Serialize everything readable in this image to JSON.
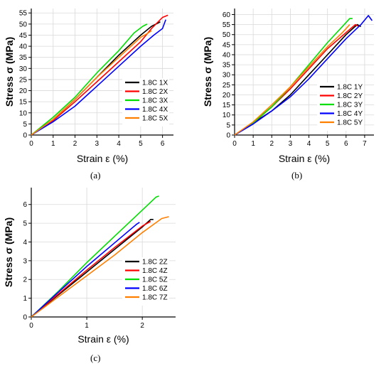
{
  "captions": [
    "(a)",
    "(b)",
    "(c)"
  ],
  "chart_data": [
    {
      "type": "line",
      "panel": "a",
      "xlabel": "Strain ε (%)",
      "ylabel": "Stress σ (MPa)",
      "xlim": [
        0,
        6.5
      ],
      "ylim": [
        0,
        57
      ],
      "xticks": [
        0,
        1,
        2,
        3,
        4,
        5,
        6
      ],
      "yticks": [
        0,
        5,
        10,
        15,
        20,
        25,
        30,
        35,
        40,
        45,
        50,
        55
      ],
      "grid": true,
      "legend_position": "center-right",
      "series": [
        {
          "name": "1.8C 1X",
          "color": "#000000",
          "x": [
            0,
            1,
            2,
            3,
            4,
            5,
            5.5,
            5.8,
            5.9
          ],
          "y": [
            0,
            7,
            16,
            26,
            36,
            45,
            49,
            50.5,
            51
          ]
        },
        {
          "name": "1.8C 2X",
          "color": "#ff0000",
          "x": [
            0,
            1,
            2,
            3,
            4,
            5,
            5.5,
            6.0,
            6.25
          ],
          "y": [
            0,
            6.5,
            15,
            24,
            33,
            42,
            48,
            53,
            54
          ]
        },
        {
          "name": "1.8C 3X",
          "color": "#00dd00",
          "x": [
            0,
            1,
            2,
            3,
            4,
            4.7,
            5.1,
            5.3
          ],
          "y": [
            0,
            8,
            17,
            28,
            38,
            46,
            49,
            50
          ]
        },
        {
          "name": "1.8C 4X",
          "color": "#0000ff",
          "x": [
            0,
            1,
            2,
            3,
            4,
            5,
            5.6,
            6.0,
            6.15
          ],
          "y": [
            0,
            6,
            13,
            22,
            31,
            40,
            45,
            48,
            52
          ]
        },
        {
          "name": "1.8C 5X",
          "color": "#ff8000",
          "x": [
            0,
            1,
            2,
            3,
            4,
            5,
            5.35,
            5.5
          ],
          "y": [
            0,
            7,
            16,
            26,
            35,
            44,
            46,
            47
          ]
        }
      ]
    },
    {
      "type": "line",
      "panel": "b",
      "xlabel": "Strain ε (%)",
      "ylabel": "Stress σ (MPa)",
      "xlim": [
        0,
        7.5
      ],
      "ylim": [
        0,
        63
      ],
      "xticks": [
        0,
        1,
        2,
        3,
        4,
        5,
        6,
        7
      ],
      "yticks": [
        0,
        5,
        10,
        15,
        20,
        25,
        30,
        35,
        40,
        45,
        50,
        55,
        60
      ],
      "grid": true,
      "legend_position": "center-right",
      "series": [
        {
          "name": "1.8C 1Y",
          "color": "#000000",
          "x": [
            0,
            1,
            2,
            3,
            4,
            5,
            6,
            6.6,
            6.8
          ],
          "y": [
            0,
            6,
            12,
            20,
            30,
            40,
            50,
            55,
            54
          ]
        },
        {
          "name": "1.8C 2Y",
          "color": "#ff0000",
          "x": [
            0,
            1,
            2,
            3,
            4,
            5,
            6,
            6.5,
            6.7
          ],
          "y": [
            0,
            6,
            14,
            23,
            33,
            43,
            51,
            55,
            54
          ]
        },
        {
          "name": "1.8C 3Y",
          "color": "#00dd00",
          "x": [
            0,
            1,
            2,
            3,
            4,
            5,
            5.8,
            6.2,
            6.35
          ],
          "y": [
            0,
            6,
            14,
            24,
            35,
            46,
            54,
            58,
            58
          ]
        },
        {
          "name": "1.8C 4Y",
          "color": "#0000ff",
          "x": [
            0,
            1,
            2,
            3,
            4,
            5,
            6,
            6.8,
            7.2,
            7.4
          ],
          "y": [
            0,
            5.5,
            12,
            19,
            28,
            38,
            48,
            55,
            59.5,
            57
          ]
        },
        {
          "name": "1.8C 5Y",
          "color": "#ff8000",
          "x": [
            0,
            1,
            2,
            3,
            4,
            5,
            5.8,
            6.1,
            6.2
          ],
          "y": [
            0,
            6.5,
            15,
            24,
            34,
            44,
            51,
            54,
            55
          ]
        }
      ]
    },
    {
      "type": "line",
      "panel": "c",
      "xlabel": "Strain ε (%)",
      "ylabel": "Stress σ (MPa)",
      "xlim": [
        0,
        2.6
      ],
      "ylim": [
        0,
        6.9
      ],
      "xticks": [
        0,
        1,
        2
      ],
      "yticks": [
        0,
        1,
        2,
        3,
        4,
        5,
        6
      ],
      "grid": true,
      "legend_position": "center-right",
      "series": [
        {
          "name": "1.8C 2Z",
          "color": "#000000",
          "x": [
            0,
            0.5,
            1.0,
            1.5,
            2.0,
            2.15,
            2.2
          ],
          "y": [
            0,
            1.2,
            2.4,
            3.6,
            4.8,
            5.2,
            5.2
          ]
        },
        {
          "name": "1.8C 4Z",
          "color": "#ff0000",
          "x": [
            0,
            0.5,
            1.0,
            1.5,
            2.0,
            2.15
          ],
          "y": [
            0,
            1.25,
            2.5,
            3.7,
            4.85,
            5.1
          ]
        },
        {
          "name": "1.8C 5Z",
          "color": "#00dd00",
          "x": [
            0,
            0.5,
            1.0,
            1.5,
            2.0,
            2.25,
            2.3
          ],
          "y": [
            0,
            1.4,
            2.9,
            4.3,
            5.7,
            6.4,
            6.45
          ]
        },
        {
          "name": "1.8C 6Z",
          "color": "#0000ff",
          "x": [
            0,
            0.5,
            1.0,
            1.5,
            1.9,
            1.95
          ],
          "y": [
            0,
            1.35,
            2.7,
            3.95,
            4.95,
            5.05
          ]
        },
        {
          "name": "1.8C 7Z",
          "color": "#ff8000",
          "x": [
            0,
            0.5,
            1.0,
            1.5,
            2.0,
            2.35,
            2.48
          ],
          "y": [
            0,
            1.1,
            2.2,
            3.3,
            4.5,
            5.25,
            5.35
          ]
        }
      ]
    }
  ]
}
